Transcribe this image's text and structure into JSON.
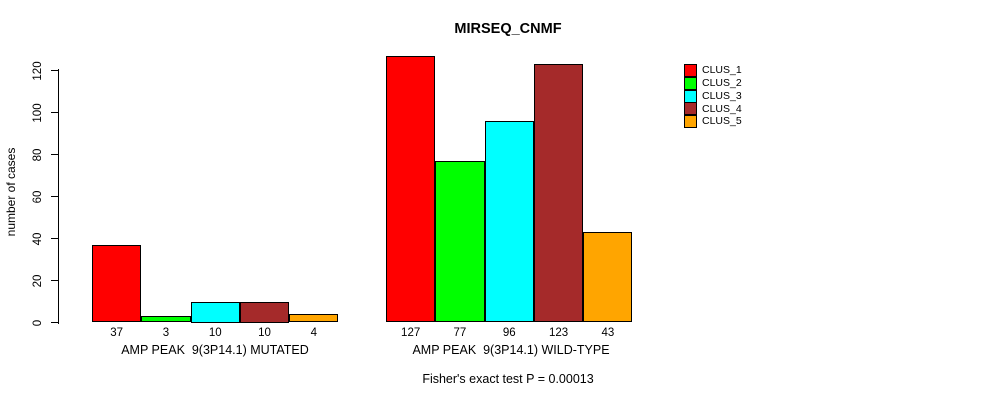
{
  "chart_data": {
    "type": "bar",
    "title": "MIRSEQ_CNMF",
    "ylabel": "number of cases",
    "ylim": [
      0,
      130
    ],
    "yticks": [
      0,
      20,
      40,
      60,
      80,
      100,
      120
    ],
    "grid": false,
    "categories": [
      "AMP PEAK  9(3P14.1) MUTATED",
      "AMP PEAK  9(3P14.1) WILD-TYPE"
    ],
    "series": [
      {
        "name": "CLUS_1",
        "color": "#FF0000",
        "values": [
          37,
          127
        ]
      },
      {
        "name": "CLUS_2",
        "color": "#00FF00",
        "values": [
          3,
          77
        ]
      },
      {
        "name": "CLUS_3",
        "color": "#00FFFF",
        "values": [
          10,
          96
        ]
      },
      {
        "name": "CLUS_4",
        "color": "#A52A2A",
        "values": [
          10,
          123
        ]
      },
      {
        "name": "CLUS_5",
        "color": "#FFA500",
        "values": [
          4,
          43
        ]
      }
    ],
    "bar_value_labels": [
      [
        37,
        3,
        10,
        10,
        4
      ],
      [
        127,
        77,
        96,
        123,
        43
      ]
    ],
    "legend_position": "topright",
    "annotation": "Fisher's exact test P = 0.00013"
  },
  "colors": {
    "background": "#FFFFFF",
    "axis": "#000000",
    "bar_border": "#000000",
    "text": "#000000"
  }
}
